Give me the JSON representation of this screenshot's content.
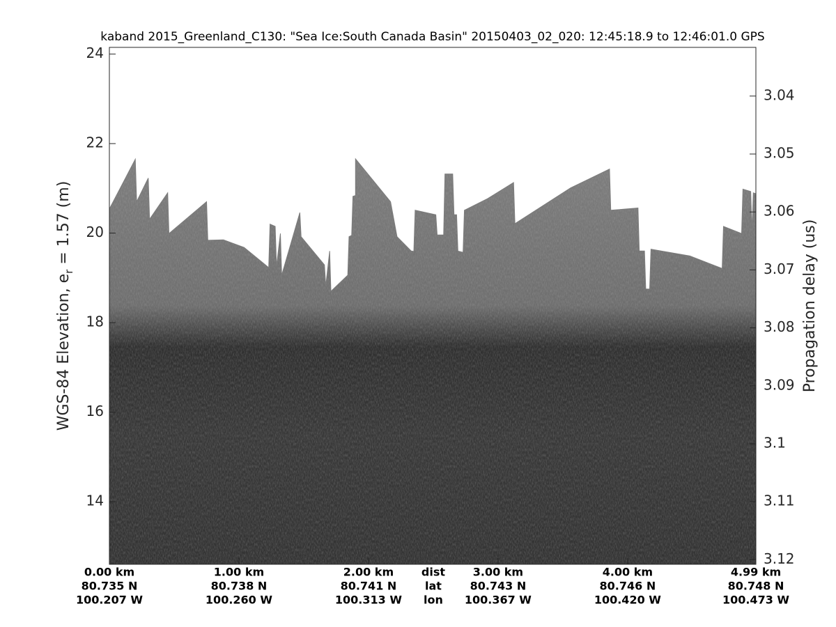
{
  "chart_data": {
    "type": "echogram",
    "title": "kaband 2015_Greenland_C130: \"Sea Ice:South Canada Basin\"  20150403_02_020: 12:45:18.9 to 12:46:01.0 GPS",
    "ylabel": [
      "WGS-84 Elevation, e",
      "r",
      " = 1.57 (m)"
    ],
    "y2label": "Propagation delay (us)",
    "xlim": [
      0,
      4.99
    ],
    "xticks": [
      {
        "value": 0,
        "label": "0.00 km"
      },
      {
        "value": 1,
        "label": "1.00 km"
      },
      {
        "value": 2,
        "label": "2.00 km"
      },
      {
        "value": 3,
        "label": "3.00 km"
      },
      {
        "value": 4,
        "label": "4.00 km"
      },
      {
        "value": 4.99,
        "label": "4.99 km"
      }
    ],
    "lat_labels": [
      "80.735 N",
      "80.738 N",
      "80.741 N",
      "80.743 N",
      "80.746 N",
      "80.748 N"
    ],
    "lon_labels": [
      "100.207 W",
      "100.260 W",
      "100.313 W",
      "100.367 W",
      "100.420 W",
      "100.473 W"
    ],
    "row_labels": [
      "dist",
      "lat",
      "lon"
    ],
    "ylim": [
      12.6,
      24.15
    ],
    "yticks": [
      14,
      16,
      18,
      20,
      22,
      24
    ],
    "y2lim": [
      3.1208,
      3.0316
    ],
    "y2ticks": [
      3.04,
      3.05,
      3.06,
      3.07,
      3.08,
      3.09,
      3.1,
      3.11,
      3.12
    ],
    "surface": {
      "color": "#7c7c7c",
      "x": [
        0.0,
        0.2,
        0.21,
        0.3,
        0.31,
        0.45,
        0.46,
        0.75,
        0.76,
        0.88,
        1.04,
        1.23,
        1.24,
        1.28,
        1.29,
        1.32,
        1.33,
        1.47,
        1.48,
        1.66,
        1.67,
        1.7,
        1.71,
        1.84,
        1.85,
        1.87,
        1.88,
        1.9,
        1.9,
        2.17,
        2.22,
        2.33,
        2.35,
        2.36,
        2.52,
        2.53,
        2.58,
        2.59,
        2.65,
        2.66,
        2.68,
        2.69,
        2.73,
        2.74,
        2.92,
        3.12,
        3.13,
        3.35,
        3.56,
        3.86,
        3.87,
        4.08,
        4.09,
        4.13,
        4.14,
        4.17,
        4.18,
        4.48,
        4.73,
        4.74,
        4.88,
        4.89,
        4.95,
        4.96,
        4.97,
        4.99
      ],
      "values": [
        20.54,
        21.65,
        20.7,
        21.23,
        20.31,
        20.9,
        19.99,
        20.7,
        19.84,
        19.85,
        19.68,
        19.23,
        20.2,
        20.15,
        19.26,
        19.99,
        19.06,
        20.46,
        19.92,
        19.29,
        18.82,
        19.6,
        18.7,
        19.06,
        19.92,
        19.95,
        20.82,
        20.84,
        21.66,
        20.7,
        19.92,
        19.6,
        19.59,
        20.51,
        20.41,
        19.96,
        19.96,
        21.32,
        21.32,
        20.41,
        20.41,
        19.6,
        19.57,
        20.51,
        20.77,
        21.13,
        20.21,
        20.62,
        21.01,
        21.43,
        20.51,
        20.56,
        19.6,
        19.6,
        18.75,
        18.75,
        19.64,
        19.49,
        19.21,
        20.15,
        19.99,
        20.98,
        20.93,
        20.04,
        20.9,
        20.88
      ]
    }
  }
}
